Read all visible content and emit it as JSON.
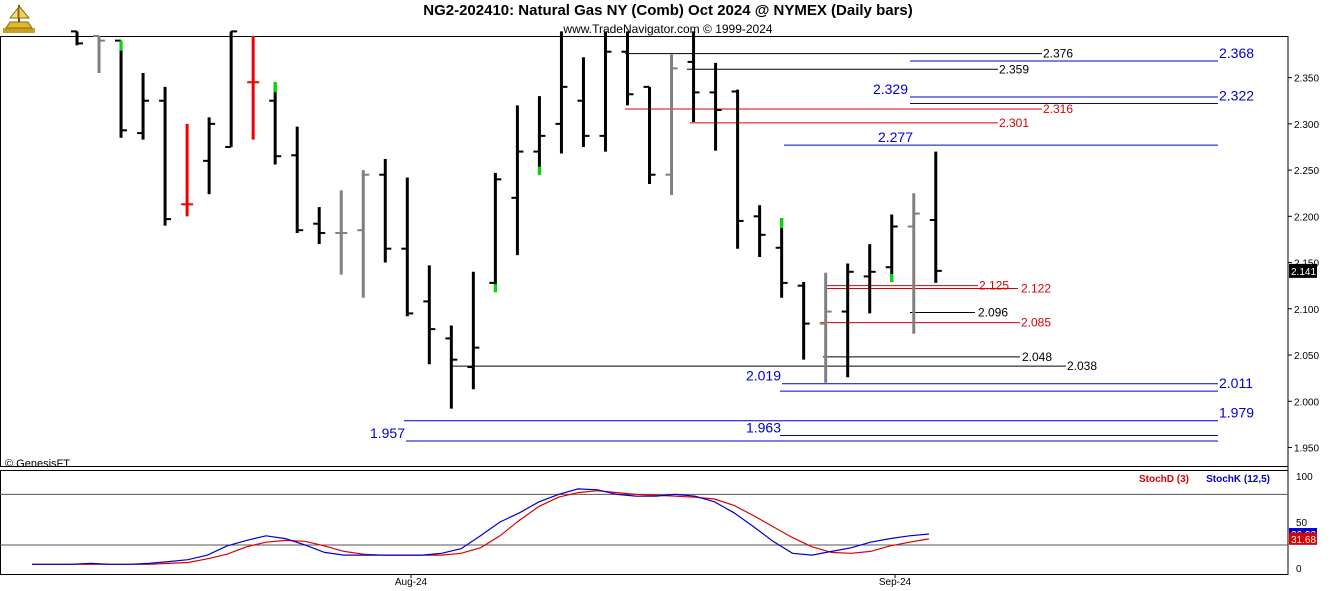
{
  "header": {
    "title": "NG2-202410:  Natural Gas NY (Comb) Oct 2024 @ NYMEX  (Daily bars)",
    "subtitle": "www.TradeNavigator.com © 1999-2024",
    "credit": "© GenesisFT",
    "logo_icon": "bull-ship-logo-icon"
  },
  "colors": {
    "up_bar": "#000000",
    "down_bar": "#808080",
    "red_bar": "#ee0000",
    "green_tip": "#00dd00",
    "level_blue": "#0000cc",
    "level_black": "#000000",
    "level_red": "#dd0000",
    "stochD": "#dd0000",
    "stochK": "#0000cc"
  },
  "chart_data": [
    {
      "type": "ohlc",
      "title": "NG2-202410:  Natural Gas NY (Comb) Oct 2024 @ NYMEX  (Daily bars)",
      "ylim": [
        1.93,
        2.395
      ],
      "y_ticks": [
        "2.350",
        "2.300",
        "2.250",
        "2.200",
        "2.150",
        "2.100",
        "2.050",
        "2.000",
        "1.950"
      ],
      "x_ticks": [
        "Aug-24",
        "Sep-24"
      ],
      "last_price": "2.141",
      "bars": [
        {
          "o": 2.4,
          "h": 2.4,
          "l": 2.385,
          "c": 2.387,
          "color": "black"
        },
        {
          "o": 2.395,
          "h": 2.395,
          "l": 2.355,
          "c": 2.39,
          "color": "gray"
        },
        {
          "o": 2.39,
          "h": 2.39,
          "l": 2.285,
          "c": 2.293,
          "color": "black",
          "tip": "high"
        },
        {
          "o": 2.29,
          "h": 2.355,
          "l": 2.283,
          "c": 2.325,
          "color": "black"
        },
        {
          "o": 2.325,
          "h": 2.34,
          "l": 2.19,
          "c": 2.197,
          "color": "black"
        },
        {
          "o": 2.213,
          "h": 2.3,
          "l": 2.2,
          "c": 2.213,
          "color": "red"
        },
        {
          "o": 2.26,
          "h": 2.307,
          "l": 2.224,
          "c": 2.3,
          "color": "black"
        },
        {
          "o": 2.275,
          "h": 2.4,
          "l": 2.275,
          "c": 2.4,
          "color": "black"
        },
        {
          "o": 2.345,
          "h": 2.395,
          "l": 2.283,
          "c": 2.345,
          "color": "red"
        },
        {
          "o": 2.325,
          "h": 2.345,
          "l": 2.256,
          "c": 2.265,
          "color": "black",
          "tip": "high"
        },
        {
          "o": 2.266,
          "h": 2.297,
          "l": 2.182,
          "c": 2.185,
          "color": "black"
        },
        {
          "o": 2.192,
          "h": 2.21,
          "l": 2.17,
          "c": 2.182,
          "color": "black"
        },
        {
          "o": 2.182,
          "h": 2.228,
          "l": 2.137,
          "c": 2.182,
          "color": "gray"
        },
        {
          "o": 2.185,
          "h": 2.25,
          "l": 2.112,
          "c": 2.245,
          "color": "gray"
        },
        {
          "o": 2.245,
          "h": 2.262,
          "l": 2.15,
          "c": 2.165,
          "color": "black"
        },
        {
          "o": 2.165,
          "h": 2.242,
          "l": 2.092,
          "c": 2.095,
          "color": "black"
        },
        {
          "o": 2.108,
          "h": 2.147,
          "l": 2.04,
          "c": 2.078,
          "color": "black"
        },
        {
          "o": 2.068,
          "h": 2.082,
          "l": 1.992,
          "c": 2.045,
          "color": "black"
        },
        {
          "o": 2.037,
          "h": 2.14,
          "l": 2.013,
          "c": 2.058,
          "color": "black"
        },
        {
          "o": 2.128,
          "h": 2.247,
          "l": 2.118,
          "c": 2.24,
          "color": "black",
          "tip": "low"
        },
        {
          "o": 2.22,
          "h": 2.32,
          "l": 2.158,
          "c": 2.27,
          "color": "black"
        },
        {
          "o": 2.27,
          "h": 2.33,
          "l": 2.245,
          "c": 2.287,
          "color": "black",
          "tip": "low"
        },
        {
          "o": 2.3,
          "h": 2.4,
          "l": 2.268,
          "c": 2.34,
          "color": "black"
        },
        {
          "o": 2.325,
          "h": 2.372,
          "l": 2.275,
          "c": 2.287,
          "color": "black"
        },
        {
          "o": 2.287,
          "h": 2.4,
          "l": 2.27,
          "c": 2.378,
          "color": "black"
        },
        {
          "o": 2.378,
          "h": 2.4,
          "l": 2.32,
          "c": 2.332,
          "color": "black"
        },
        {
          "o": 2.34,
          "h": 2.34,
          "l": 2.235,
          "c": 2.245,
          "color": "black"
        },
        {
          "o": 2.245,
          "h": 2.375,
          "l": 2.223,
          "c": 2.36,
          "color": "gray"
        },
        {
          "o": 2.367,
          "h": 2.4,
          "l": 2.302,
          "c": 2.334,
          "color": "black"
        },
        {
          "o": 2.334,
          "h": 2.366,
          "l": 2.271,
          "c": 2.315,
          "color": "black"
        },
        {
          "o": 2.335,
          "h": 2.337,
          "l": 2.165,
          "c": 2.195,
          "color": "black"
        },
        {
          "o": 2.2,
          "h": 2.212,
          "l": 2.156,
          "c": 2.18,
          "color": "black"
        },
        {
          "o": 2.166,
          "h": 2.198,
          "l": 2.112,
          "c": 2.128,
          "color": "black",
          "tip": "high"
        },
        {
          "o": 2.125,
          "h": 2.129,
          "l": 2.045,
          "c": 2.084,
          "color": "black"
        },
        {
          "o": 2.084,
          "h": 2.139,
          "l": 2.02,
          "c": 2.097,
          "color": "gray"
        },
        {
          "o": 2.097,
          "h": 2.149,
          "l": 2.026,
          "c": 2.14,
          "color": "black"
        },
        {
          "o": 2.135,
          "h": 2.17,
          "l": 2.095,
          "c": 2.14,
          "color": "black"
        },
        {
          "o": 2.145,
          "h": 2.202,
          "l": 2.129,
          "c": 2.189,
          "color": "black",
          "tip": "low"
        },
        {
          "o": 2.189,
          "h": 2.225,
          "l": 2.073,
          "c": 2.203,
          "color": "gray"
        },
        {
          "o": 2.196,
          "h": 2.27,
          "l": 2.128,
          "c": 2.141,
          "color": "black"
        }
      ]
    },
    {
      "type": "levels",
      "blue": [
        {
          "value": 2.368,
          "label": "2.368",
          "label_side": "right"
        },
        {
          "value": 2.329,
          "label": "2.329",
          "label_side": "left"
        },
        {
          "value": 2.322,
          "label": "2.322",
          "label_side": "right"
        },
        {
          "value": 2.277,
          "label": "2.277",
          "label_side": "left"
        },
        {
          "value": 2.019,
          "label": "2.019",
          "label_side": "left"
        },
        {
          "value": 2.011,
          "label": "2.011",
          "label_side": "right"
        },
        {
          "value": 1.979,
          "label": "1.979",
          "label_side": "right"
        },
        {
          "value": 1.963,
          "label": "1.963",
          "label_side": "left"
        },
        {
          "value": 1.957,
          "label": "1.957",
          "label_side": "left"
        }
      ],
      "black": [
        {
          "value": 2.376,
          "label": "2.376"
        },
        {
          "value": 2.359,
          "label": "2.359"
        },
        {
          "value": 2.096,
          "label": "2.096"
        },
        {
          "value": 2.048,
          "label": "2.048"
        },
        {
          "value": 2.038,
          "label": "2.038"
        }
      ],
      "red": [
        {
          "value": 2.316,
          "label": "2.316"
        },
        {
          "value": 2.301,
          "label": "2.301"
        },
        {
          "value": 2.125,
          "label": "2.125"
        },
        {
          "value": 2.122,
          "label": "2.122"
        },
        {
          "value": 2.085,
          "label": "2.085"
        }
      ]
    },
    {
      "type": "line",
      "title": "StochD (3) / StochK (12,5)",
      "ylim": [
        0,
        100
      ],
      "y_ticks": [
        "100",
        "50",
        "0"
      ],
      "guides": [
        80,
        25
      ],
      "last_values": {
        "stochD": "31.68",
        "stochK": "36.92"
      },
      "series": [
        {
          "name": "StochD (3)",
          "color": "#dd0000",
          "values": [
            4,
            4,
            4,
            4,
            4,
            4,
            4,
            5,
            6,
            10,
            15,
            23,
            28,
            30,
            29,
            24,
            18,
            15,
            14,
            14,
            14,
            14,
            16,
            22,
            35,
            52,
            67,
            77,
            82,
            84,
            82,
            80,
            79,
            78,
            77,
            75,
            68,
            57,
            45,
            33,
            23,
            17,
            16,
            18,
            24,
            28,
            31.68
          ]
        },
        {
          "name": "StochK (12,5)",
          "color": "#0000cc",
          "values": [
            4,
            4,
            4,
            5,
            4,
            4,
            5,
            7,
            9,
            14,
            24,
            30,
            35,
            32,
            25,
            17,
            14,
            14,
            14,
            14,
            14,
            16,
            21,
            35,
            50,
            60,
            72,
            80,
            86,
            85,
            80,
            78,
            78,
            80,
            78,
            72,
            60,
            45,
            29,
            16,
            14,
            18,
            22,
            28,
            32,
            35,
            36.92
          ]
        }
      ]
    }
  ]
}
